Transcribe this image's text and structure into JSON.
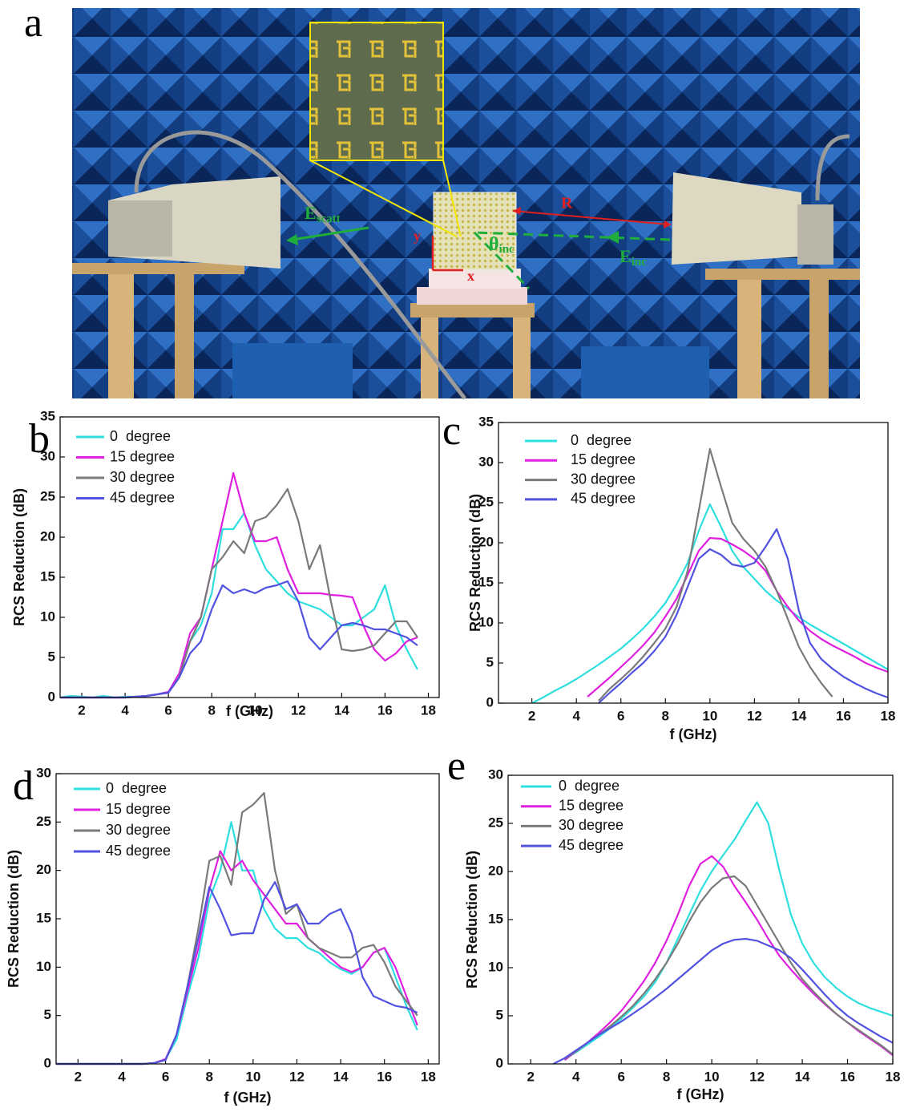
{
  "photo": {
    "label": "a",
    "distance": "R",
    "scattered_field": {
      "symbol": "E",
      "subscript": "scatt"
    },
    "incident_angle": {
      "symbol": "θ",
      "subscript": "inc"
    },
    "incident_field": {
      "symbol": "E",
      "subscript": "inc"
    },
    "x_axis": "x",
    "y_axis": "y"
  },
  "chart_data": [
    {
      "type": "line",
      "panel_label": "b",
      "xlabel": "f (GHz)",
      "ylabel": "RCS Reduction (dB)",
      "xlim": [
        1,
        18.5
      ],
      "xticks": [
        2,
        4,
        6,
        8,
        10,
        12,
        14,
        16,
        18
      ],
      "ylim": [
        0,
        35
      ],
      "yticks": [
        0,
        5,
        10,
        15,
        20,
        25,
        30,
        35
      ],
      "legend": "upper left",
      "x": [
        1,
        1.5,
        2,
        2.5,
        3,
        3.5,
        4,
        4.5,
        5,
        5.5,
        6,
        6.5,
        7,
        7.5,
        8,
        8.5,
        9,
        9.5,
        10,
        10.5,
        11,
        11.5,
        12,
        12.5,
        13,
        13.5,
        14,
        14.5,
        15,
        15.5,
        16,
        16.5,
        17,
        17.5
      ],
      "series": [
        {
          "name": "0  degree",
          "color": "#2fdede",
          "values": [
            0,
            0.2,
            0.1,
            0,
            0.2,
            0,
            0.1,
            0.1,
            0.2,
            0.4,
            0.7,
            3,
            7,
            9,
            13,
            21,
            21,
            23,
            19,
            16,
            14.5,
            13,
            12,
            11.5,
            11,
            10,
            9,
            9,
            10,
            11,
            14,
            9,
            6,
            3.5
          ]
        },
        {
          "name": "15 degree",
          "color": "#e020e0",
          "values": [
            0,
            0,
            0,
            0,
            0,
            0,
            0,
            0.1,
            0.2,
            0.4,
            0.7,
            3,
            8,
            10,
            16,
            22,
            28,
            23,
            19.5,
            19.5,
            20,
            16,
            13,
            13,
            13,
            12.8,
            12.7,
            12.5,
            9,
            6,
            4.6,
            5.5,
            7,
            7.5
          ]
        },
        {
          "name": "30 degree",
          "color": "#7a7a7a",
          "values": [
            0,
            0,
            0,
            0,
            0,
            0,
            0,
            0.1,
            0.2,
            0.4,
            0.6,
            2.5,
            7,
            10,
            16,
            17.5,
            19.5,
            18,
            22,
            22.5,
            24,
            26,
            22,
            16,
            19,
            12,
            6,
            5.8,
            6,
            6.5,
            8,
            9.5,
            9.5,
            7.5
          ]
        },
        {
          "name": "45 degree",
          "color": "#5252e0",
          "values": [
            0,
            0,
            0,
            0,
            0,
            0,
            0,
            0.1,
            0.2,
            0.4,
            0.6,
            2.5,
            5.5,
            7,
            11,
            14,
            13,
            13.5,
            13,
            13.7,
            14,
            14.5,
            12,
            7.5,
            6,
            7.5,
            9,
            9.3,
            9,
            8.5,
            8.5,
            8,
            7.5,
            6.5
          ]
        }
      ]
    },
    {
      "type": "line",
      "panel_label": "c",
      "xlabel": "f (GHz)",
      "ylabel": "RCS Reduction (dB)",
      "xlim": [
        0.5,
        18
      ],
      "xticks": [
        2,
        4,
        6,
        8,
        10,
        12,
        14,
        16,
        18
      ],
      "ylim": [
        0,
        35
      ],
      "yticks": [
        0,
        5,
        10,
        15,
        20,
        25,
        30,
        35
      ],
      "legend": "upper left",
      "x": [
        2,
        2.5,
        3,
        3.5,
        4,
        4.5,
        5,
        5.5,
        6,
        6.5,
        7,
        7.5,
        8,
        8.5,
        9,
        9.5,
        10,
        10.5,
        11,
        11.5,
        12,
        12.5,
        13,
        13.5,
        14,
        14.5,
        15,
        15.5,
        16,
        16.5,
        17,
        17.5,
        18
      ],
      "series": [
        {
          "name": "0  degree",
          "color": "#2fdede",
          "values": [
            0,
            0.7,
            1.5,
            2.2,
            3,
            3.9,
            4.8,
            5.8,
            6.8,
            8,
            9.3,
            10.8,
            12.5,
            14.8,
            17.5,
            21.5,
            24.8,
            22,
            19,
            17,
            15.5,
            14,
            12.8,
            11.8,
            10.7,
            9.8,
            9,
            8.2,
            7.4,
            6.6,
            5.8,
            5,
            4.2
          ]
        },
        {
          "name": "15 degree",
          "color": "#e020e0",
          "values": [
            null,
            null,
            null,
            null,
            null,
            0.8,
            2,
            3.2,
            4.5,
            5.8,
            7.2,
            8.8,
            10.8,
            13,
            16,
            19,
            20.6,
            20.5,
            19.8,
            19,
            18,
            16.5,
            14,
            12,
            10.3,
            9,
            8,
            7.2,
            6.5,
            5.8,
            5,
            4.4,
            3.9
          ]
        },
        {
          "name": "30 degree",
          "color": "#7a7a7a",
          "values": [
            null,
            null,
            null,
            null,
            null,
            null,
            0.3,
            1.8,
            3,
            4.3,
            5.8,
            7.5,
            9.3,
            12,
            16.5,
            24,
            31.7,
            27,
            22.5,
            20.5,
            19,
            17,
            14,
            10.5,
            7,
            4.5,
            2.5,
            0.8,
            null,
            null,
            null,
            null,
            null
          ]
        },
        {
          "name": "45 degree",
          "color": "#5252e0",
          "values": [
            null,
            null,
            null,
            null,
            null,
            null,
            0,
            1.3,
            2.5,
            3.8,
            5,
            6.5,
            8.3,
            11,
            14.5,
            18,
            19.2,
            18.5,
            17.3,
            17,
            17.5,
            19.5,
            21.7,
            18,
            11.5,
            7.5,
            5.5,
            4.3,
            3.3,
            2.5,
            1.8,
            1.2,
            0.7
          ]
        }
      ]
    },
    {
      "type": "line",
      "panel_label": "d",
      "xlabel": "f (GHz)",
      "ylabel": "RCS Reduction (dB)",
      "xlim": [
        1,
        18.5
      ],
      "xticks": [
        2,
        4,
        6,
        8,
        10,
        12,
        14,
        16,
        18
      ],
      "ylim": [
        0,
        30
      ],
      "yticks": [
        0,
        5,
        10,
        15,
        20,
        25,
        30
      ],
      "legend": "upper left",
      "x": [
        1,
        1.5,
        2,
        2.5,
        3,
        3.5,
        4,
        4.5,
        5,
        5.5,
        6,
        6.5,
        7,
        7.5,
        8,
        8.5,
        9,
        9.5,
        10,
        10.5,
        11,
        11.5,
        12,
        12.5,
        13,
        13.5,
        14,
        14.5,
        15,
        15.5,
        16,
        16.5,
        17,
        17.5
      ],
      "series": [
        {
          "name": "0  degree",
          "color": "#2fdede",
          "values": [
            0,
            0,
            0,
            0,
            0,
            0,
            0,
            0,
            0,
            0.1,
            0.5,
            2.5,
            7,
            11,
            17,
            20,
            25,
            20,
            20,
            16,
            14,
            13,
            13,
            12,
            11.5,
            10.5,
            9.8,
            9.3,
            10,
            11.5,
            12,
            9,
            6,
            3.5
          ]
        },
        {
          "name": "15 degree",
          "color": "#e020e0",
          "values": [
            0,
            0,
            0,
            0,
            0,
            0,
            0,
            0,
            0,
            0.1,
            0.5,
            3,
            7.5,
            12,
            18,
            22,
            20,
            21,
            19,
            17.5,
            16,
            14.5,
            14.5,
            13,
            12,
            11,
            10,
            9.5,
            10,
            11.5,
            12,
            10,
            7,
            4
          ]
        },
        {
          "name": "30 degree",
          "color": "#7a7a7a",
          "values": [
            0,
            0,
            0,
            0,
            0,
            0,
            0,
            0,
            0,
            0.1,
            0.4,
            3,
            8,
            14,
            21,
            21.5,
            18.5,
            26,
            26.8,
            28,
            20,
            15.5,
            16.5,
            13,
            12,
            11.5,
            11,
            11,
            12,
            12.3,
            10.5,
            8,
            6.5,
            5
          ]
        },
        {
          "name": "45 degree",
          "color": "#5252e0",
          "values": [
            0,
            0,
            0,
            0,
            0,
            0,
            0,
            0,
            0,
            0.1,
            0.4,
            3,
            8,
            13,
            18.3,
            16,
            13.3,
            13.5,
            13.5,
            17,
            18.8,
            16,
            16.5,
            14.5,
            14.5,
            15.5,
            16,
            13.5,
            9,
            7,
            6.5,
            6,
            5.8,
            5.3
          ]
        }
      ]
    },
    {
      "type": "line",
      "panel_label": "e",
      "xlabel": "f (GHz)",
      "ylabel": "RCS Reduction (dB)",
      "xlim": [
        1,
        18
      ],
      "xticks": [
        2,
        4,
        6,
        8,
        10,
        12,
        14,
        16,
        18
      ],
      "ylim": [
        0,
        30
      ],
      "yticks": [
        0,
        5,
        10,
        15,
        20,
        25,
        30
      ],
      "legend": "upper left",
      "x": [
        3,
        3.5,
        4,
        4.5,
        5,
        5.5,
        6,
        6.5,
        7,
        7.5,
        8,
        8.5,
        9,
        9.5,
        10,
        10.5,
        11,
        11.5,
        12,
        12.5,
        13,
        13.5,
        14,
        14.5,
        15,
        15.5,
        16,
        16.5,
        17,
        17.5,
        18
      ],
      "series": [
        {
          "name": "0  degree",
          "color": "#2fdede",
          "values": [
            null,
            0.5,
            1.2,
            2,
            2.8,
            3.7,
            4.7,
            5.8,
            7,
            8.5,
            10.5,
            13,
            15.5,
            18,
            20,
            21.7,
            23.3,
            25.3,
            27.2,
            25,
            20,
            15.5,
            12.5,
            10.5,
            9,
            7.9,
            7,
            6.3,
            5.8,
            5.4,
            5
          ]
        },
        {
          "name": "15 degree",
          "color": "#e020e0",
          "values": [
            null,
            0.4,
            1.3,
            2.2,
            3.2,
            4.3,
            5.5,
            7,
            8.6,
            10.5,
            12.8,
            15.5,
            18.5,
            20.8,
            21.6,
            20.5,
            18.5,
            16.8,
            15,
            13,
            11.2,
            9.8,
            8.5,
            7.3,
            6.2,
            5.2,
            4.3,
            3.4,
            2.6,
            1.8,
            0.9
          ]
        },
        {
          "name": "30 degree",
          "color": "#7a7a7a",
          "values": [
            null,
            0.5,
            1.3,
            2.2,
            3,
            3.9,
            4.9,
            6,
            7.3,
            8.8,
            10.5,
            12.5,
            14.8,
            16.8,
            18.3,
            19.3,
            19.5,
            18.5,
            16.5,
            14.5,
            12.5,
            10.5,
            8.8,
            7.5,
            6.3,
            5.2,
            4.3,
            3.5,
            2.7,
            1.9,
            1
          ]
        },
        {
          "name": "45 degree",
          "color": "#5252e0",
          "values": [
            0,
            0.6,
            1.4,
            2.2,
            3,
            3.7,
            4.4,
            5.2,
            6,
            6.9,
            7.8,
            8.8,
            9.8,
            10.8,
            11.8,
            12.5,
            12.9,
            13,
            12.8,
            12.3,
            11.8,
            11,
            9.8,
            8.5,
            7.2,
            6,
            5,
            4.2,
            3.5,
            2.8,
            2.2
          ]
        }
      ]
    }
  ]
}
